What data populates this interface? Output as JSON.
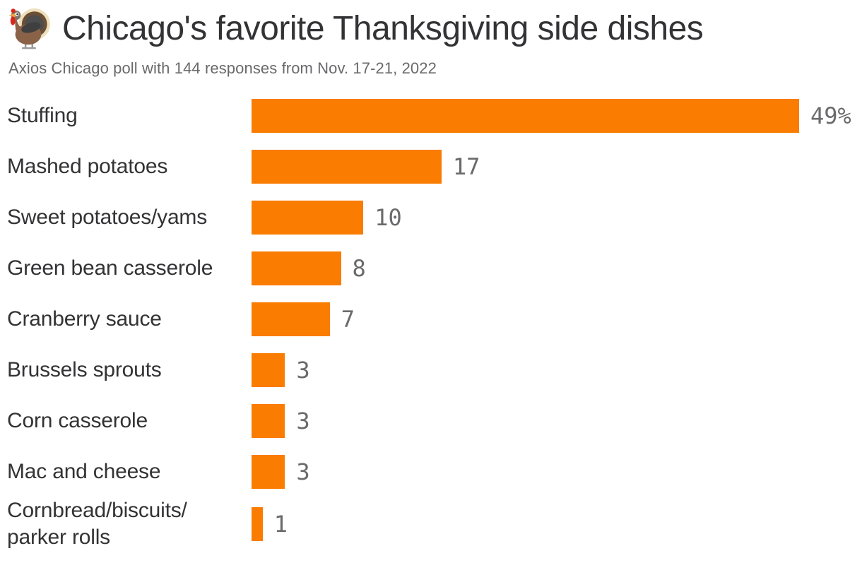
{
  "header": {
    "icon": "turkey-emoji",
    "title": "Chicago's favorite Thanksgiving side dishes",
    "subtitle": "Axios Chicago poll with 144 responses from Nov. 17-21, 2022"
  },
  "colors": {
    "bar": "#FA7C00",
    "title_text": "#333335",
    "subtitle_text": "#6A6A6C",
    "category_text": "#333335",
    "value_text": "#6A6A6C",
    "background": "#FFFFFF"
  },
  "chart_data": {
    "type": "bar",
    "orientation": "horizontal",
    "title": "Chicago's favorite Thanksgiving side dishes",
    "subtitle": "Axios Chicago poll with 144 responses from Nov. 17-21, 2022",
    "unit": "%",
    "xlim": [
      0,
      49
    ],
    "grid": false,
    "legend": false,
    "bar_color": "#FA7C00",
    "categories": [
      "Stuffing",
      "Mashed potatoes",
      "Sweet potatoes/yams",
      "Green bean casserole",
      "Cranberry sauce",
      "Brussels sprouts",
      "Corn casserole",
      "Mac and cheese",
      "Cornbread/biscuits/parker rolls"
    ],
    "values": [
      49,
      17,
      10,
      8,
      7,
      3,
      3,
      3,
      1
    ],
    "value_labels": [
      "49%",
      "17",
      "10",
      "8",
      "7",
      "3",
      "3",
      "3",
      "1"
    ],
    "items": [
      {
        "label": "Stuffing",
        "value": 49,
        "display": "49%"
      },
      {
        "label": "Mashed potatoes",
        "value": 17,
        "display": "17"
      },
      {
        "label": "Sweet potatoes/yams",
        "value": 10,
        "display": "10"
      },
      {
        "label": "Green bean casserole",
        "value": 8,
        "display": "8"
      },
      {
        "label": "Cranberry sauce",
        "value": 7,
        "display": "7"
      },
      {
        "label": "Brussels sprouts",
        "value": 3,
        "display": "3"
      },
      {
        "label": "Corn casserole",
        "value": 3,
        "display": "3"
      },
      {
        "label": "Mac and cheese",
        "value": 3,
        "display": "3"
      },
      {
        "label": "Cornbread/biscuits/\nparker rolls",
        "value": 1,
        "display": "1",
        "label_flat": "Cornbread/biscuits/parker rolls"
      }
    ]
  }
}
